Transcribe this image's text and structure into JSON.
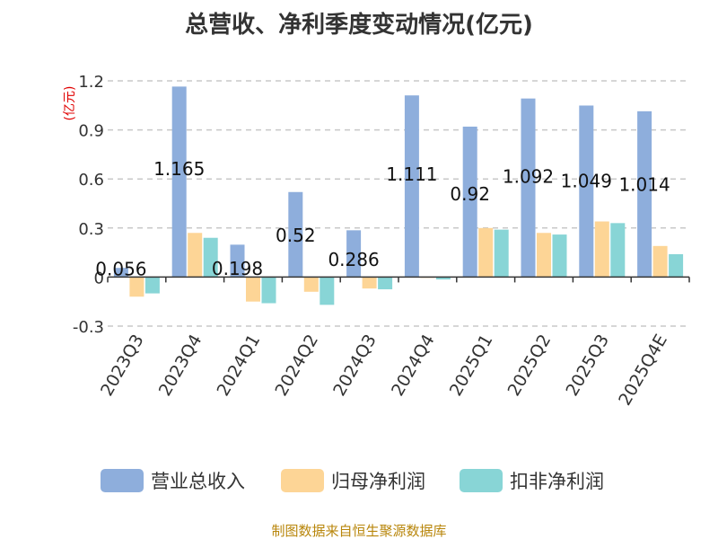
{
  "chart_data": {
    "type": "bar",
    "title": "总营收、净利季度变动情况(亿元)",
    "ylabel": "(亿元)",
    "ylim": [
      -0.3,
      1.2
    ],
    "yticks": [
      "-0.3",
      "0",
      "0.3",
      "0.6",
      "0.9",
      "1.2"
    ],
    "categories": [
      "2023Q3",
      "2023Q4",
      "2024Q1",
      "2024Q2",
      "2024Q3",
      "2024Q4",
      "2025Q1",
      "2025Q2",
      "2025Q3",
      "2025Q4E"
    ],
    "series": [
      {
        "name": "营业总收入",
        "color": "#8eaedc",
        "values": [
          0.056,
          1.165,
          0.198,
          0.52,
          0.286,
          1.111,
          0.92,
          1.092,
          1.049,
          1.014
        ]
      },
      {
        "name": "归母净利润",
        "color": "#fdd596",
        "values": [
          -0.12,
          0.27,
          -0.15,
          -0.09,
          -0.07,
          -0.005,
          0.3,
          0.27,
          0.34,
          0.19
        ]
      },
      {
        "name": "扣非净利润",
        "color": "#88d5d6",
        "values": [
          -0.1,
          0.24,
          -0.16,
          -0.17,
          -0.075,
          -0.015,
          0.29,
          0.26,
          0.33,
          0.14
        ]
      }
    ],
    "data_labels": [
      "0.056",
      "1.165",
      "0.198",
      "0.52",
      "0.286",
      "1.111",
      "0.92",
      "1.092",
      "1.049",
      "1.014"
    ],
    "grid": true,
    "legend": "bottom"
  },
  "source": "制图数据来自恒生聚源数据库"
}
